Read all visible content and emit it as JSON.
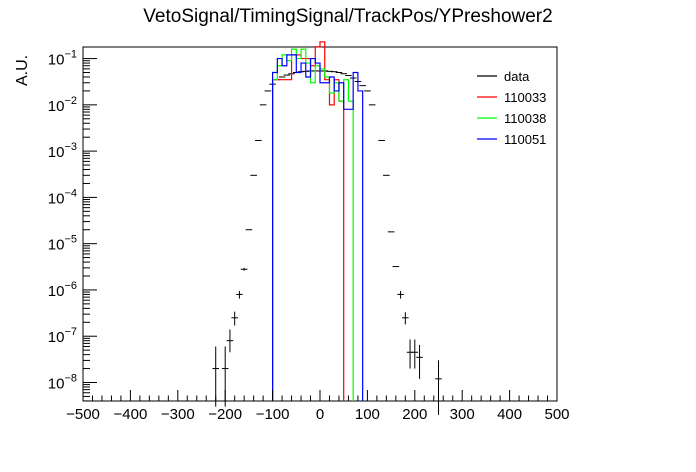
{
  "chart_data": {
    "type": "line",
    "title": "VetoSignal/TimingSignal/TrackPos/YPreshower2",
    "xlabel": "",
    "ylabel": "A.U.",
    "xlim": [
      -500,
      500
    ],
    "ylim_log10": [
      -8.4,
      -0.75
    ],
    "yscale": "log",
    "x_ticks": [
      "-500",
      "-400",
      "-300",
      "-200",
      "-100",
      "0",
      "100",
      "200",
      "300",
      "400",
      "500"
    ],
    "y_ticks": [
      {
        "base": "10",
        "exp": "-8",
        "v": -8
      },
      {
        "base": "10",
        "exp": "-7",
        "v": -7
      },
      {
        "base": "10",
        "exp": "-6",
        "v": -6
      },
      {
        "base": "10",
        "exp": "-5",
        "v": -5
      },
      {
        "base": "10",
        "exp": "-4",
        "v": -4
      },
      {
        "base": "10",
        "exp": "-3",
        "v": -3
      },
      {
        "base": "10",
        "exp": "-2",
        "v": -2
      },
      {
        "base": "10",
        "exp": "-1",
        "v": -1
      }
    ],
    "legend_position": "top-right",
    "series": [
      {
        "name": "data",
        "color": "#000000",
        "style": "points-with-errors",
        "points": [
          {
            "x": -220,
            "y": 2e-08,
            "elo": 3e-09,
            "ehi": 6e-08
          },
          {
            "x": -200,
            "y": 2e-08,
            "elo": 3e-09,
            "ehi": 6e-08
          },
          {
            "x": -190,
            "y": 8e-08,
            "elo": 4.5e-08,
            "ehi": 1.4e-07
          },
          {
            "x": -180,
            "y": 2.5e-07,
            "elo": 1.7e-07,
            "ehi": 3.4e-07
          },
          {
            "x": -170,
            "y": 8e-07,
            "elo": 6.5e-07,
            "ehi": 9.5e-07
          },
          {
            "x": -160,
            "y": 2.8e-06,
            "elo": 2.6e-06,
            "ehi": 3e-06
          },
          {
            "x": -150,
            "y": 2e-05
          },
          {
            "x": -140,
            "y": 0.0003
          },
          {
            "x": -130,
            "y": 0.0017
          },
          {
            "x": -120,
            "y": 0.01
          },
          {
            "x": -110,
            "y": 0.02
          },
          {
            "x": -100,
            "y": 0.028
          },
          {
            "x": -90,
            "y": 0.035
          },
          {
            "x": -80,
            "y": 0.04
          },
          {
            "x": -70,
            "y": 0.044
          },
          {
            "x": -60,
            "y": 0.047
          },
          {
            "x": -50,
            "y": 0.05
          },
          {
            "x": -40,
            "y": 0.052
          },
          {
            "x": -30,
            "y": 0.053
          },
          {
            "x": -20,
            "y": 0.054
          },
          {
            "x": -10,
            "y": 0.054
          },
          {
            "x": 0,
            "y": 0.054
          },
          {
            "x": 10,
            "y": 0.054
          },
          {
            "x": 20,
            "y": 0.053
          },
          {
            "x": 30,
            "y": 0.052
          },
          {
            "x": 40,
            "y": 0.05
          },
          {
            "x": 50,
            "y": 0.047
          },
          {
            "x": 60,
            "y": 0.043
          },
          {
            "x": 70,
            "y": 0.038
          },
          {
            "x": 80,
            "y": 0.032
          },
          {
            "x": 90,
            "y": 0.026
          },
          {
            "x": 100,
            "y": 0.02
          },
          {
            "x": 110,
            "y": 0.01
          },
          {
            "x": 130,
            "y": 0.0017
          },
          {
            "x": 140,
            "y": 0.0003
          },
          {
            "x": 150,
            "y": 1.8e-05
          },
          {
            "x": 160,
            "y": 3.2e-06
          },
          {
            "x": 170,
            "y": 8e-07,
            "elo": 6.5e-07,
            "ehi": 9.5e-07
          },
          {
            "x": 180,
            "y": 2.5e-07,
            "elo": 1.8e-07,
            "ehi": 3.3e-07
          },
          {
            "x": 190,
            "y": 4.5e-08,
            "elo": 2e-08,
            "ehi": 8.5e-08
          },
          {
            "x": 200,
            "y": 4.5e-08,
            "elo": 2e-08,
            "ehi": 8.5e-08
          },
          {
            "x": 210,
            "y": 3.5e-08,
            "elo": 1.2e-08,
            "ehi": 6.5e-08
          },
          {
            "x": 250,
            "y": 1.2e-08,
            "elo": 2e-09,
            "ehi": 3e-08
          }
        ]
      },
      {
        "name": "110033",
        "color": "#ff0000",
        "style": "step",
        "bins": [
          {
            "lo": -100,
            "hi": -80,
            "y": 0.035
          },
          {
            "lo": -80,
            "hi": -60,
            "y": 0.035
          },
          {
            "lo": -60,
            "hi": -40,
            "y": 0.12
          },
          {
            "lo": -40,
            "hi": -20,
            "y": 0.1
          },
          {
            "lo": -20,
            "hi": -10,
            "y": 0.07
          },
          {
            "lo": -10,
            "hi": 0,
            "y": 0.18
          },
          {
            "lo": 0,
            "hi": 10,
            "y": 0.23
          },
          {
            "lo": 10,
            "hi": 20,
            "y": 0.035
          },
          {
            "lo": 20,
            "hi": 30,
            "y": 0.01
          },
          {
            "lo": 30,
            "hi": 40,
            "y": 0.035
          },
          {
            "lo": 40,
            "hi": 50,
            "y": 0.012
          }
        ]
      },
      {
        "name": "110038",
        "color": "#00ff00",
        "style": "step",
        "bins": [
          {
            "lo": -100,
            "hi": -90,
            "y": 0.035
          },
          {
            "lo": -90,
            "hi": -80,
            "y": 0.07
          },
          {
            "lo": -80,
            "hi": -70,
            "y": 0.12
          },
          {
            "lo": -70,
            "hi": -60,
            "y": 0.09
          },
          {
            "lo": -60,
            "hi": -50,
            "y": 0.16
          },
          {
            "lo": -50,
            "hi": -40,
            "y": 0.1
          },
          {
            "lo": -40,
            "hi": -30,
            "y": 0.16
          },
          {
            "lo": -30,
            "hi": -20,
            "y": 0.08
          },
          {
            "lo": -20,
            "hi": -10,
            "y": 0.03
          },
          {
            "lo": -10,
            "hi": 0,
            "y": 0.07
          },
          {
            "lo": 0,
            "hi": 10,
            "y": 0.06
          },
          {
            "lo": 10,
            "hi": 20,
            "y": 0.04
          },
          {
            "lo": 20,
            "hi": 30,
            "y": 0.018
          },
          {
            "lo": 30,
            "hi": 40,
            "y": 0.03
          },
          {
            "lo": 40,
            "hi": 50,
            "y": 0.012
          },
          {
            "lo": 50,
            "hi": 60,
            "y": 0.035
          },
          {
            "lo": 60,
            "hi": 70,
            "y": 0.012
          }
        ]
      },
      {
        "name": "110051",
        "color": "#0000ff",
        "style": "step",
        "bins": [
          {
            "lo": -100,
            "hi": -90,
            "y": 0.05
          },
          {
            "lo": -90,
            "hi": -80,
            "y": 0.1
          },
          {
            "lo": -80,
            "hi": -70,
            "y": 0.07
          },
          {
            "lo": -70,
            "hi": -60,
            "y": 0.12
          },
          {
            "lo": -60,
            "hi": -50,
            "y": 0.12
          },
          {
            "lo": -50,
            "hi": -40,
            "y": 0.05
          },
          {
            "lo": -40,
            "hi": -30,
            "y": 0.08
          },
          {
            "lo": -30,
            "hi": -20,
            "y": 0.04
          },
          {
            "lo": -20,
            "hi": -10,
            "y": 0.1
          },
          {
            "lo": -10,
            "hi": 0,
            "y": 0.08
          },
          {
            "lo": 0,
            "hi": 10,
            "y": 0.03
          },
          {
            "lo": 10,
            "hi": 20,
            "y": 0.03
          },
          {
            "lo": 20,
            "hi": 30,
            "y": 0.04
          },
          {
            "lo": 30,
            "hi": 40,
            "y": 0.02
          },
          {
            "lo": 40,
            "hi": 50,
            "y": 0.03
          },
          {
            "lo": 50,
            "hi": 60,
            "y": 0.008
          },
          {
            "lo": 60,
            "hi": 70,
            "y": 0.008
          },
          {
            "lo": 70,
            "hi": 80,
            "y": 0.05
          },
          {
            "lo": 80,
            "hi": 90,
            "y": 0.02
          }
        ]
      }
    ]
  }
}
